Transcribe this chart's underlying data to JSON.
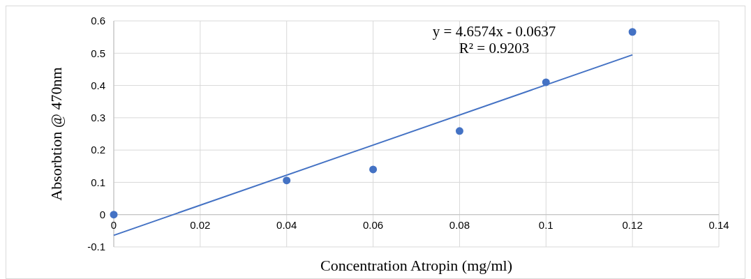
{
  "chart_data": {
    "type": "scatter",
    "xlabel": "Concentration Atropin (mg/ml)",
    "ylabel": "Absorbtion @ 470nm",
    "xlim": [
      0,
      0.14
    ],
    "xticks": [
      0,
      0.02,
      0.04,
      0.06,
      0.08,
      0.1,
      0.12,
      0.14
    ],
    "ylim": [
      -0.1,
      0.6
    ],
    "yticks": [
      -0.1,
      0,
      0.1,
      0.2,
      0.3,
      0.4,
      0.5,
      0.6
    ],
    "grid": true,
    "annotations": [
      "y = 4.6574x - 0.0637",
      "R² = 0.9203"
    ],
    "series": [
      {
        "color": "#4472c4",
        "marker": "circle",
        "x": [
          0,
          0.04,
          0.06,
          0.08,
          0.1,
          0.12
        ],
        "values": [
          0,
          0.106,
          0.14,
          0.259,
          0.41,
          0.566
        ]
      },
      {
        "type": "line",
        "color": "#4472c4",
        "marker": "none",
        "x": [
          0,
          0.12
        ],
        "values": [
          -0.064,
          0.495
        ]
      }
    ]
  }
}
